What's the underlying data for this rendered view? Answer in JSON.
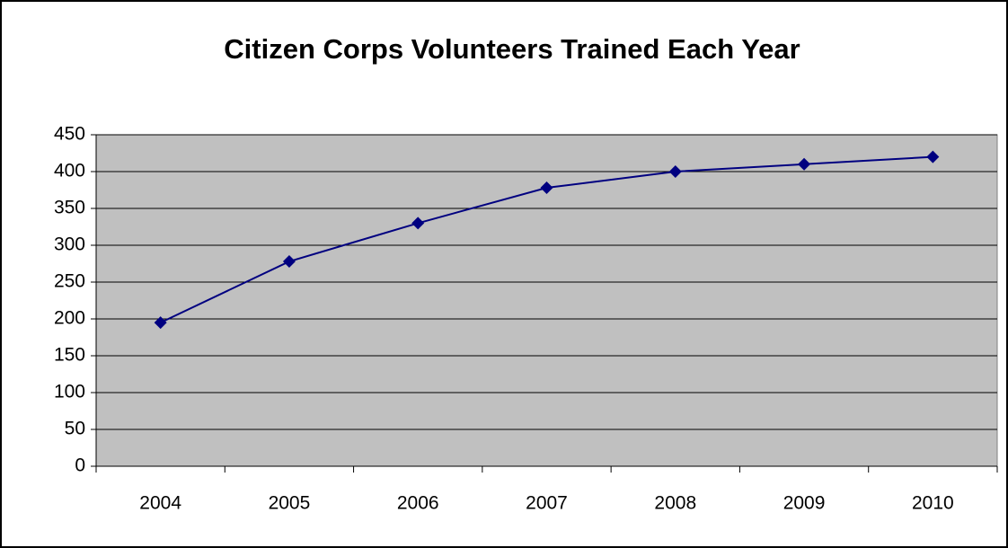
{
  "chart_data": {
    "type": "line",
    "title": "Citizen Corps Volunteers Trained Each Year",
    "categories": [
      "2004",
      "2005",
      "2006",
      "2007",
      "2008",
      "2009",
      "2010"
    ],
    "values": [
      195,
      278,
      330,
      378,
      400,
      410,
      420
    ],
    "color": "#000080",
    "ylim": [
      0,
      450
    ],
    "yticks": [
      0,
      50,
      100,
      150,
      200,
      250,
      300,
      350,
      400,
      450
    ],
    "grid": true,
    "plot_background": "#c0c0c0"
  }
}
